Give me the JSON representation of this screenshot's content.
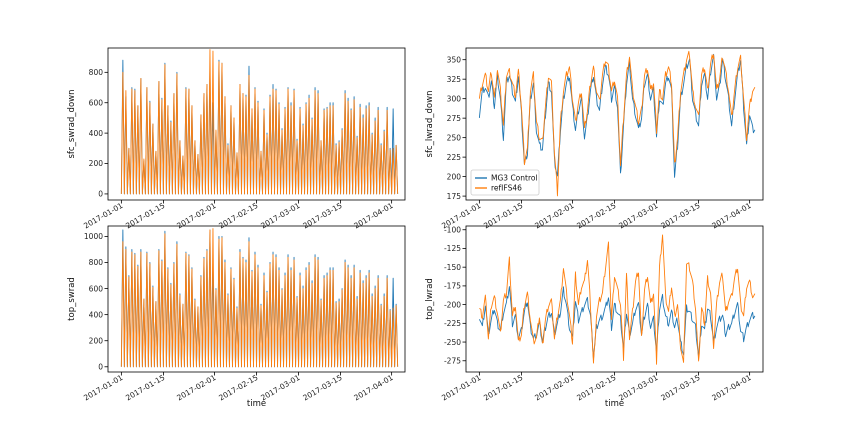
{
  "figure": {
    "series_colors": {
      "MG3 Control": "#1f77b4",
      "refIFS46": "#ff7f0e"
    }
  },
  "chart_data": [
    {
      "id": "sfc_swrad_down",
      "type": "line",
      "ylabel": "sfc_swrad_down",
      "xlabel": "",
      "x_kind": "date",
      "x_range": [
        "2017-01-01",
        "2017-04-01"
      ],
      "x_tick_labels": [
        "2017-01-01",
        "2017-01-15",
        "2017-02-01",
        "2017-02-15",
        "2017-03-01",
        "2017-03-15",
        "2017-04-01"
      ],
      "ylim": [
        -40,
        960
      ],
      "y_ticks": [
        0,
        200,
        400,
        600,
        800
      ],
      "pattern": "diurnal",
      "series": [
        {
          "name": "MG3 Control",
          "color": "#1f77b4",
          "daily_peaks": [
            880,
            640,
            300,
            700,
            690,
            580,
            760,
            220,
            700,
            610,
            460,
            280,
            740,
            630,
            860,
            580,
            480,
            660,
            800,
            350,
            250,
            700,
            690,
            580,
            350,
            260,
            520,
            660,
            720,
            820,
            600,
            410,
            880,
            860,
            640,
            330,
            580,
            500,
            270,
            720,
            660,
            650,
            840,
            560,
            700,
            610,
            280,
            560,
            400,
            650,
            720,
            690,
            600,
            430,
            570,
            700,
            600,
            690,
            360,
            570,
            460,
            600,
            650,
            500,
            700,
            680,
            350,
            560,
            570,
            600,
            600,
            330,
            350,
            430,
            680,
            630,
            560,
            640,
            380,
            590,
            520,
            580,
            600,
            400,
            500,
            570,
            330,
            420,
            570,
            300,
            560,
            320
          ]
        },
        {
          "name": "refIFS46",
          "color": "#ff7f0e",
          "daily_peaks": [
            800,
            680,
            300,
            690,
            680,
            580,
            760,
            230,
            700,
            600,
            460,
            280,
            740,
            620,
            850,
            580,
            470,
            660,
            790,
            350,
            250,
            690,
            690,
            580,
            350,
            260,
            520,
            660,
            720,
            950,
            940,
            420,
            870,
            860,
            640,
            320,
            580,
            500,
            270,
            720,
            660,
            640,
            780,
            560,
            690,
            600,
            280,
            550,
            390,
            640,
            690,
            680,
            590,
            420,
            560,
            690,
            580,
            680,
            350,
            560,
            450,
            590,
            630,
            490,
            680,
            660,
            350,
            550,
            560,
            580,
            580,
            320,
            340,
            420,
            660,
            610,
            550,
            620,
            370,
            570,
            500,
            560,
            580,
            390,
            480,
            550,
            320,
            410,
            550,
            290,
            300,
            320
          ]
        }
      ]
    },
    {
      "id": "sfc_lwrad_down",
      "type": "line",
      "ylabel": "sfc_lwrad_down",
      "xlabel": "",
      "x_kind": "date",
      "x_range": [
        "2017-01-01",
        "2017-04-01"
      ],
      "x_tick_labels": [
        "2017-01-01",
        "2017-01-15",
        "2017-02-01",
        "2017-02-15",
        "2017-03-01",
        "2017-03-15",
        "2017-04-01"
      ],
      "ylim": [
        170,
        365
      ],
      "y_ticks": [
        175,
        200,
        225,
        250,
        275,
        300,
        325,
        350
      ],
      "legend": {
        "position": "lower-left",
        "entries": [
          "MG3 Control",
          "refIFS46"
        ]
      },
      "pattern": "continuous",
      "series": [
        {
          "name": "MG3 Control",
          "color": "#1f77b4",
          "daily_values": [
            280,
            310,
            315,
            300,
            322,
            290,
            330,
            300,
            250,
            320,
            330,
            310,
            295,
            330,
            280,
            215,
            230,
            300,
            320,
            260,
            240,
            235,
            280,
            320,
            310,
            220,
            200,
            260,
            300,
            320,
            330,
            290,
            260,
            285,
            300,
            250,
            275,
            310,
            330,
            300,
            285,
            320,
            340,
            330,
            300,
            315,
            290,
            200,
            265,
            320,
            345,
            300,
            280,
            260,
            275,
            320,
            330,
            300,
            310,
            250,
            300,
            290,
            320,
            330,
            310,
            200,
            240,
            300,
            320,
            340,
            350,
            300,
            280,
            265,
            320,
            330,
            300,
            335,
            355,
            300,
            315,
            350,
            325,
            300,
            265,
            300,
            330,
            350,
            290,
            240,
            280,
            260
          ]
        },
        {
          "name": "refIFS46",
          "color": "#ff7f0e",
          "daily_values": [
            300,
            320,
            330,
            310,
            335,
            300,
            338,
            310,
            265,
            330,
            335,
            320,
            305,
            335,
            290,
            220,
            235,
            310,
            330,
            270,
            250,
            245,
            290,
            330,
            320,
            230,
            180,
            270,
            310,
            330,
            340,
            300,
            270,
            295,
            310,
            260,
            285,
            320,
            340,
            310,
            295,
            330,
            350,
            340,
            310,
            325,
            300,
            215,
            275,
            330,
            355,
            310,
            290,
            270,
            285,
            330,
            340,
            310,
            320,
            260,
            310,
            300,
            330,
            340,
            320,
            215,
            250,
            310,
            330,
            350,
            358,
            310,
            290,
            275,
            330,
            340,
            310,
            345,
            360,
            310,
            325,
            355,
            335,
            310,
            275,
            310,
            340,
            352,
            300,
            250,
            290,
            310
          ]
        }
      ]
    },
    {
      "id": "top_swrad",
      "type": "line",
      "ylabel": "top_swrad",
      "xlabel": "time",
      "x_kind": "date",
      "x_range": [
        "2017-01-01",
        "2017-04-01"
      ],
      "x_tick_labels": [
        "2017-01-01",
        "2017-01-15",
        "2017-02-01",
        "2017-02-15",
        "2017-03-01",
        "2017-03-15",
        "2017-04-01"
      ],
      "ylim": [
        -40,
        1080
      ],
      "y_ticks": [
        0,
        200,
        400,
        600,
        800,
        1000
      ],
      "pattern": "diurnal",
      "series": [
        {
          "name": "MG3 Control",
          "color": "#1f77b4",
          "daily_peaks": [
            1050,
            920,
            700,
            900,
            870,
            780,
            900,
            520,
            880,
            800,
            620,
            500,
            900,
            820,
            1040,
            760,
            640,
            800,
            960,
            560,
            480,
            880,
            860,
            760,
            520,
            460,
            700,
            840,
            900,
            1050,
            800,
            600,
            1000,
            1000,
            820,
            560,
            760,
            680,
            460,
            900,
            840,
            820,
            990,
            740,
            880,
            780,
            480,
            720,
            580,
            800,
            880,
            860,
            760,
            600,
            720,
            860,
            760,
            840,
            540,
            720,
            620,
            760,
            800,
            660,
            860,
            840,
            520,
            700,
            720,
            760,
            760,
            500,
            520,
            600,
            820,
            780,
            700,
            780,
            540,
            740,
            660,
            700,
            740,
            560,
            620,
            700,
            480,
            560,
            700,
            440,
            680,
            480
          ]
        },
        {
          "name": "refIFS46",
          "color": "#ff7f0e",
          "daily_peaks": [
            960,
            900,
            690,
            880,
            860,
            770,
            880,
            520,
            870,
            790,
            610,
            500,
            890,
            810,
            1020,
            750,
            630,
            790,
            940,
            550,
            480,
            870,
            850,
            750,
            510,
            460,
            690,
            830,
            890,
            1050,
            1060,
            590,
            980,
            990,
            800,
            550,
            750,
            670,
            450,
            880,
            830,
            800,
            960,
            730,
            860,
            760,
            470,
            700,
            570,
            790,
            860,
            840,
            740,
            590,
            700,
            840,
            740,
            820,
            530,
            700,
            600,
            740,
            780,
            640,
            840,
            820,
            510,
            680,
            700,
            740,
            740,
            490,
            500,
            590,
            800,
            760,
            680,
            760,
            520,
            720,
            640,
            680,
            720,
            540,
            600,
            680,
            470,
            540,
            680,
            430,
            450,
            470
          ]
        }
      ]
    },
    {
      "id": "top_lwrad",
      "type": "line",
      "ylabel": "top_lwrad",
      "xlabel": "time",
      "x_kind": "date",
      "x_range": [
        "2017-01-01",
        "2017-04-01"
      ],
      "x_tick_labels": [
        "2017-01-01",
        "2017-01-15",
        "2017-02-01",
        "2017-02-15",
        "2017-03-01",
        "2017-03-15",
        "2017-04-01"
      ],
      "ylim": [
        -290,
        -95
      ],
      "y_ticks": [
        -275,
        -250,
        -225,
        -200,
        -175,
        -150,
        -125,
        -100
      ],
      "pattern": "continuous",
      "series": [
        {
          "name": "MG3 Control",
          "color": "#1f77b4",
          "daily_values": [
            -215,
            -230,
            -200,
            -240,
            -220,
            -205,
            -225,
            -235,
            -210,
            -200,
            -175,
            -225,
            -215,
            -245,
            -235,
            -210,
            -195,
            -230,
            -245,
            -240,
            -225,
            -250,
            -230,
            -215,
            -210,
            -240,
            -225,
            -210,
            -180,
            -200,
            -230,
            -245,
            -195,
            -220,
            -210,
            -200,
            -195,
            -215,
            -270,
            -230,
            -220,
            -215,
            -205,
            -190,
            -230,
            -200,
            -210,
            -220,
            -260,
            -210,
            -240,
            -225,
            -205,
            -200,
            -240,
            -215,
            -200,
            -230,
            -220,
            -265,
            -205,
            -190,
            -215,
            -225,
            -210,
            -230,
            -220,
            -250,
            -265,
            -205,
            -210,
            -220,
            -230,
            -270,
            -225,
            -235,
            -205,
            -215,
            -250,
            -230,
            -220,
            -215,
            -240,
            -230,
            -225,
            -210,
            -200,
            -235,
            -245,
            -230,
            -220,
            -215
          ]
        },
        {
          "name": "refIFS46",
          "color": "#ff7f0e",
          "daily_values": [
            -205,
            -215,
            -190,
            -245,
            -200,
            -190,
            -210,
            -240,
            -195,
            -185,
            -140,
            -215,
            -200,
            -250,
            -240,
            -200,
            -185,
            -220,
            -250,
            -245,
            -215,
            -255,
            -220,
            -200,
            -195,
            -245,
            -215,
            -195,
            -150,
            -185,
            -215,
            -250,
            -160,
            -200,
            -175,
            -170,
            -140,
            -200,
            -280,
            -215,
            -195,
            -185,
            -150,
            -120,
            -220,
            -160,
            -180,
            -200,
            -270,
            -160,
            -245,
            -210,
            -170,
            -155,
            -245,
            -180,
            -160,
            -200,
            -185,
            -275,
            -150,
            -105,
            -190,
            -210,
            -175,
            -215,
            -200,
            -255,
            -280,
            -145,
            -150,
            -170,
            -205,
            -280,
            -205,
            -225,
            -165,
            -185,
            -255,
            -200,
            -170,
            -160,
            -210,
            -195,
            -190,
            -165,
            -150,
            -200,
            -215,
            -175,
            -170,
            -190
          ]
        }
      ]
    }
  ]
}
